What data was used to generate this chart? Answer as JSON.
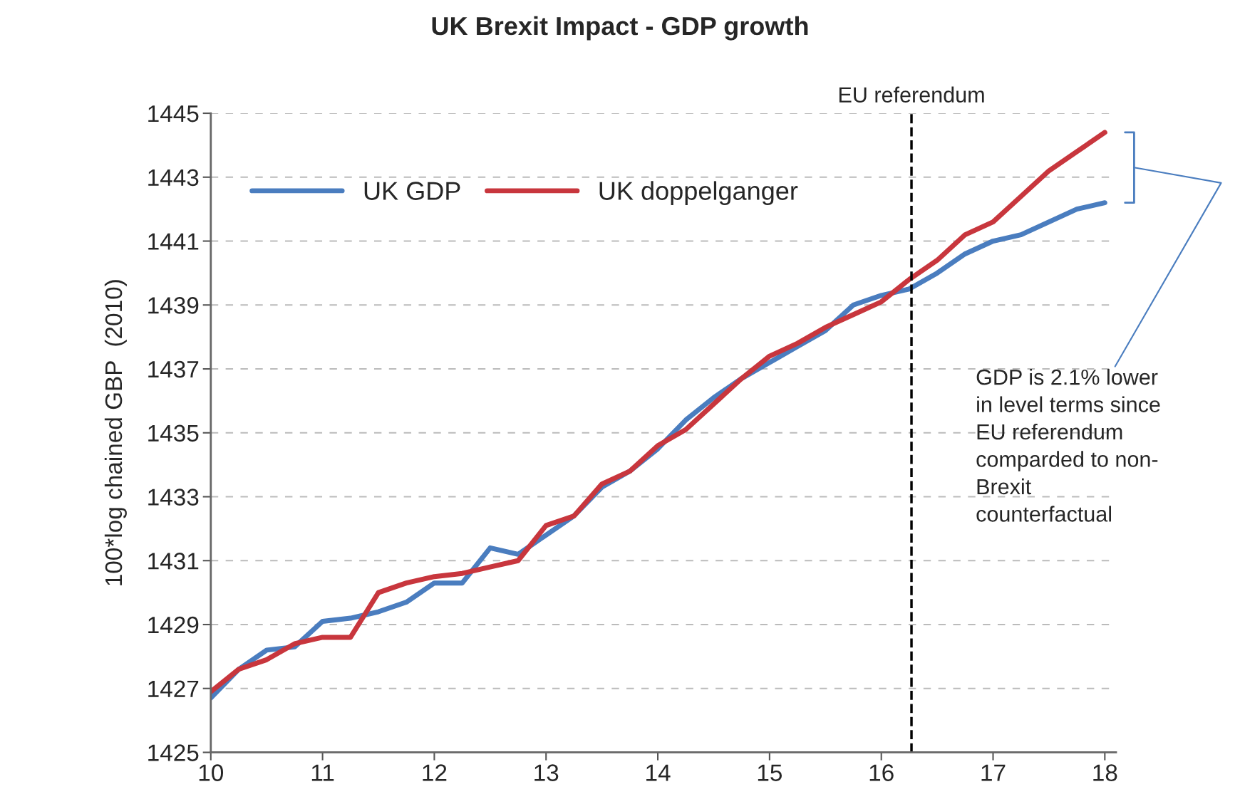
{
  "chart_data": {
    "type": "line",
    "title": "UK Brexit Impact - GDP growth",
    "ylabel": "100*log chained GBP  (2010)",
    "x": [
      10,
      10.25,
      10.5,
      10.75,
      11,
      11.25,
      11.5,
      11.75,
      12,
      12.25,
      12.5,
      12.75,
      13,
      13.25,
      13.5,
      13.75,
      14,
      14.25,
      14.5,
      14.75,
      15,
      15.25,
      15.5,
      15.75,
      16,
      16.25,
      16.5,
      16.75,
      17,
      17.25,
      17.5,
      17.75,
      18
    ],
    "series": [
      {
        "name": "UK GDP",
        "color": "#4a7dbf",
        "values": [
          1426.7,
          1427.6,
          1428.2,
          1428.3,
          1429.1,
          1429.2,
          1429.4,
          1429.7,
          1430.3,
          1430.3,
          1431.4,
          1431.2,
          1431.8,
          1432.4,
          1433.3,
          1433.8,
          1434.5,
          1435.4,
          1436.1,
          1436.7,
          1437.2,
          1437.7,
          1438.2,
          1439.0,
          1439.3,
          1439.5,
          1440.0,
          1440.6,
          1441.0,
          1441.2,
          1441.6,
          1442.0,
          1442.2
        ]
      },
      {
        "name": "UK doppelganger",
        "color": "#c8363d",
        "values": [
          1426.9,
          1427.6,
          1427.9,
          1428.4,
          1428.6,
          1428.6,
          1430.0,
          1430.3,
          1430.5,
          1430.6,
          1430.8,
          1431.0,
          1432.1,
          1432.4,
          1433.4,
          1433.8,
          1434.6,
          1435.1,
          1435.9,
          1436.7,
          1437.4,
          1437.8,
          1438.3,
          1438.7,
          1439.1,
          1439.8,
          1440.4,
          1441.2,
          1441.6,
          1442.4,
          1443.2,
          1443.8,
          1444.4
        ]
      }
    ],
    "xlim": [
      10,
      18.1
    ],
    "xticks": [
      10,
      11,
      12,
      13,
      14,
      15,
      16,
      17,
      18
    ],
    "ylim": [
      1425,
      1445
    ],
    "yticks": [
      1425,
      1427,
      1429,
      1431,
      1433,
      1435,
      1437,
      1439,
      1441,
      1443,
      1445
    ],
    "ref_lines": [
      {
        "axis": "x",
        "value": 16.27,
        "label": "EU referendum",
        "color": "#000000",
        "line_style": "dashed"
      }
    ],
    "annotations": [
      "GDP is 2.1% lower\nin level terms since\nEU referendum\ncomparded to non-\nBrexit\ncounterfactual"
    ],
    "grid": "y",
    "legend": "top left",
    "line_style": "solid",
    "marker": "none"
  }
}
